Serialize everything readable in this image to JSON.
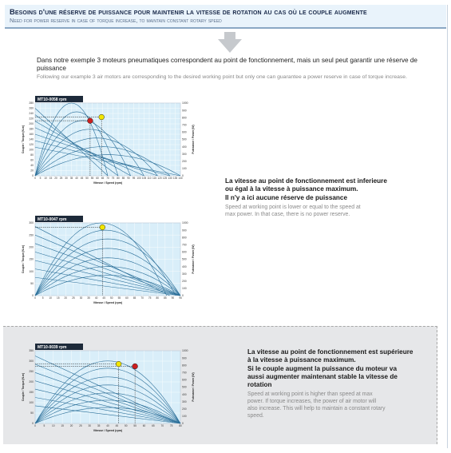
{
  "header": {
    "title_fr": "Besoins d'une réserve de puissance pour maintenir la vitesse de rotation au cas où le couple augmente",
    "title_en": "Need for power reserve in case of torque increase, to maintain constant rotary speed"
  },
  "intro": {
    "fr": "Dans notre exemple 3 moteurs pneumatiques correspondent au point de fonctionnement, mais un seul peut garantir une réserve de puissance",
    "en": "Following our example 3 air motors are corresponding to the desired working point but only one can guarantee a power reserve in case of torque increase."
  },
  "colors": {
    "chart_bg": "#d9eef9",
    "curve": "#2b6f99",
    "grid": "#ffffff",
    "working_point": "#f2e600",
    "max_power_point": "#cc1f1f",
    "grey_panel": "#e6e7e9"
  },
  "notes": [
    {
      "fr_line1": "La vitesse au point de fonctionnement est inferieure",
      "fr_line2": "ou égal à la vitesse à puissance maximum.",
      "fr_line3": "Il n'y a ici aucune réserve de puissance",
      "en_line1": "Speed at working point is lower or equal to the speed at",
      "en_line2": "max power. In that case, there is no power reserve."
    },
    {
      "fr_line1": "La vitesse au point de fonctionnement est supérieure",
      "fr_line2": "à la vitesse à puissance maximum.",
      "fr_line3": "Si le couple augment la puissance du moteur va",
      "fr_line4": "aussi augmenter maintenant stable la vitesse de",
      "fr_line5": "rotation",
      "en_line1": "Speed at working point is higher than speed at max",
      "en_line2": "power. If torque increases, the power of air motor will",
      "en_line3": "also increase. This will help to maintain a constant rotary",
      "en_line4": "speed."
    }
  ],
  "chart_data": [
    {
      "type": "line",
      "title": "MT10-0058 rpm",
      "xlabel": "Vitesse / Speed (rpm)",
      "ylabel": "Couple / Torque (N.m)",
      "y2label": "Puissance / Power (W)",
      "ylim": [
        0,
        280
      ],
      "y_ticks": [
        0,
        20,
        40,
        60,
        80,
        100,
        120,
        140,
        160,
        180,
        200,
        220,
        240,
        260,
        280
      ],
      "y2lim": [
        0,
        1000
      ],
      "y2_ticks": [
        0,
        100,
        200,
        300,
        400,
        500,
        600,
        700,
        800,
        900,
        1000
      ],
      "x_ticks": [
        "0",
        "5",
        "10",
        "15",
        "20",
        "25",
        "30",
        "35",
        "40",
        "45",
        "50",
        "55",
        "60",
        "65",
        "70",
        "75",
        "80",
        "85",
        "90",
        "95",
        "100",
        "105",
        "110",
        "115",
        "120",
        "125",
        "130",
        "135",
        "140"
      ],
      "xlim": [
        0,
        140
      ],
      "torque_lines": [
        [
          260,
          70
        ],
        [
          235,
          80
        ],
        [
          210,
          92
        ],
        [
          185,
          105
        ],
        [
          160,
          118
        ],
        [
          135,
          130
        ],
        [
          110,
          140
        ]
      ],
      "power_curves": [
        [
          70,
          1000
        ],
        [
          80,
          880
        ],
        [
          92,
          760
        ],
        [
          105,
          640
        ],
        [
          118,
          520
        ],
        [
          130,
          400
        ],
        [
          140,
          290
        ]
      ],
      "working_point": {
        "x": 64,
        "y": 226
      },
      "max_power_point": {
        "x": 53,
        "y": 212
      }
    },
    {
      "type": "line",
      "title": "MT10-0047 rpm",
      "xlabel": "Vitesse / Speed (rpm)",
      "ylabel": "Couple / Torque (N.m)",
      "y2label": "Puissance / Power (W)",
      "ylim": [
        0,
        300
      ],
      "y_ticks": [
        0,
        50,
        100,
        150,
        200,
        250,
        300
      ],
      "y2lim": [
        0,
        1000
      ],
      "y2_ticks": [
        0,
        100,
        200,
        300,
        400,
        500,
        600,
        700,
        800,
        900,
        1000
      ],
      "x_ticks": [
        "0",
        "5",
        "10",
        "15",
        "20",
        "25",
        "30",
        "35",
        "40",
        "45",
        "50",
        "55",
        "60",
        "65",
        "70",
        "75",
        "80",
        "85",
        "90",
        "95"
      ],
      "xlim": [
        0,
        95
      ],
      "torque_lines": [
        [
          285,
          88
        ],
        [
          250,
          95
        ],
        [
          215,
          95
        ],
        [
          180,
          95
        ],
        [
          145,
          95
        ],
        [
          110,
          95
        ],
        [
          75,
          95
        ]
      ],
      "power_curves": [
        [
          86,
          1000
        ],
        [
          92,
          900
        ],
        [
          95,
          780
        ],
        [
          95,
          650
        ],
        [
          95,
          520
        ],
        [
          95,
          400
        ],
        [
          95,
          280
        ]
      ],
      "working_point": {
        "x": 44,
        "y": 282
      },
      "max_power_point": null
    },
    {
      "type": "line",
      "title": "MT10-0039 rpm",
      "xlabel": "Vitesse / Speed (rpm)",
      "ylabel": "Couple / Torque (N.m)",
      "y2label": "Puissance / Power (W)",
      "ylim": [
        0,
        350
      ],
      "y_ticks": [
        0,
        50,
        100,
        150,
        200,
        250,
        300,
        350
      ],
      "y2lim": [
        0,
        1000
      ],
      "y2_ticks": [
        0,
        100,
        200,
        300,
        400,
        500,
        600,
        700,
        800,
        900,
        1000
      ],
      "x_ticks": [
        "0",
        "5",
        "10",
        "15",
        "20",
        "25",
        "30",
        "35",
        "40",
        "45",
        "50",
        "55",
        "60",
        "65",
        "70",
        "75",
        "80"
      ],
      "xlim": [
        0,
        80
      ],
      "torque_lines": [
        [
          325,
          80
        ],
        [
          285,
          80
        ],
        [
          245,
          80
        ],
        [
          205,
          80
        ],
        [
          165,
          80
        ],
        [
          125,
          80
        ],
        [
          85,
          80
        ]
      ],
      "power_curves": [
        [
          80,
          860
        ],
        [
          80,
          760
        ],
        [
          80,
          640
        ],
        [
          80,
          530
        ],
        [
          80,
          420
        ],
        [
          80,
          320
        ],
        [
          80,
          220
        ]
      ],
      "working_point": {
        "x": 46,
        "y": 286
      },
      "max_power_point": {
        "x": 55,
        "y": 275
      }
    }
  ]
}
